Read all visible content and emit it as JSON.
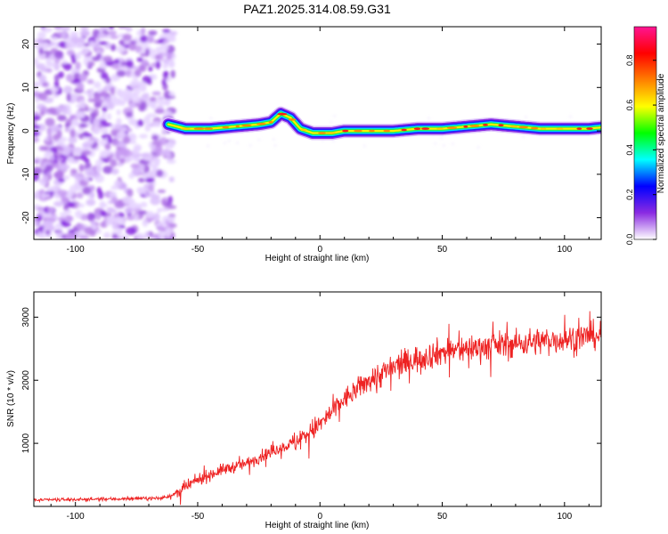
{
  "title": "PAZ1.2025.314.08.59.G31",
  "chart_data": [
    {
      "type": "heatmap",
      "name": "spectrogram",
      "title": "PAZ1.2025.314.08.59.G31",
      "xlabel": "Height of straight line (km)",
      "ylabel": "Frequency (Hz)",
      "xlim": [
        -117,
        115
      ],
      "ylim": [
        -25,
        24
      ],
      "xticks": [
        -100,
        -50,
        0,
        50,
        100
      ],
      "xtick_labels": [
        "-100",
        "-50",
        "0",
        "50",
        "100"
      ],
      "yticks": [
        -20,
        -10,
        0,
        10,
        20
      ],
      "ytick_labels": [
        "-20",
        "-10",
        "0",
        "10",
        "20"
      ],
      "noise_region_x": [
        -117,
        -60
      ],
      "ridge_points": [
        [
          -62,
          1.5
        ],
        [
          -55,
          0.5
        ],
        [
          -45,
          0.5
        ],
        [
          -35,
          1.0
        ],
        [
          -25,
          1.5
        ],
        [
          -20,
          2.0
        ],
        [
          -16,
          4.0
        ],
        [
          -12,
          3.0
        ],
        [
          -8,
          0.5
        ],
        [
          -3,
          -0.5
        ],
        [
          5,
          -0.5
        ],
        [
          10,
          0.0
        ],
        [
          20,
          0.0
        ],
        [
          30,
          0.0
        ],
        [
          40,
          0.5
        ],
        [
          50,
          0.5
        ],
        [
          60,
          1.0
        ],
        [
          70,
          1.5
        ],
        [
          80,
          1.0
        ],
        [
          90,
          0.5
        ],
        [
          100,
          0.5
        ],
        [
          110,
          0.5
        ],
        [
          115,
          0.8
        ]
      ],
      "colorbar": {
        "label": "Normalized spectral amplitude",
        "range": [
          0.0,
          0.95
        ],
        "ticks": [
          0.0,
          0.2,
          0.4,
          0.6,
          0.8
        ],
        "tick_labels": [
          "0.0",
          "0.2",
          "0.4",
          "0.6",
          "0.8"
        ],
        "colors": [
          "#ffffff",
          "#8a2be2",
          "#0000ff",
          "#00ffff",
          "#00ff00",
          "#ffff00",
          "#ff7f00",
          "#ff0000",
          "#ff1493"
        ]
      }
    },
    {
      "type": "line",
      "name": "snr",
      "xlabel": "Height of straight line (km)",
      "ylabel": "SNR (10 * v/v)",
      "xlim": [
        -117,
        115
      ],
      "ylim": [
        0,
        3400
      ],
      "xticks": [
        -100,
        -50,
        0,
        50,
        100
      ],
      "xtick_labels": [
        "-100",
        "-50",
        "0",
        "50",
        "100"
      ],
      "yticks": [
        1000,
        2000,
        3000
      ],
      "ytick_labels": [
        "1000",
        "2000",
        "3000"
      ],
      "color": "#ee2222",
      "trend": {
        "x": [
          -117,
          -100,
          -80,
          -65,
          -60,
          -55,
          -50,
          -40,
          -30,
          -20,
          -10,
          0,
          10,
          20,
          30,
          40,
          50,
          60,
          70,
          80,
          90,
          100,
          110,
          115
        ],
        "y": [
          100,
          110,
          120,
          130,
          180,
          300,
          420,
          580,
          680,
          870,
          1020,
          1300,
          1700,
          2000,
          2200,
          2350,
          2450,
          2500,
          2550,
          2580,
          2620,
          2650,
          2700,
          2720
        ]
      }
    }
  ]
}
